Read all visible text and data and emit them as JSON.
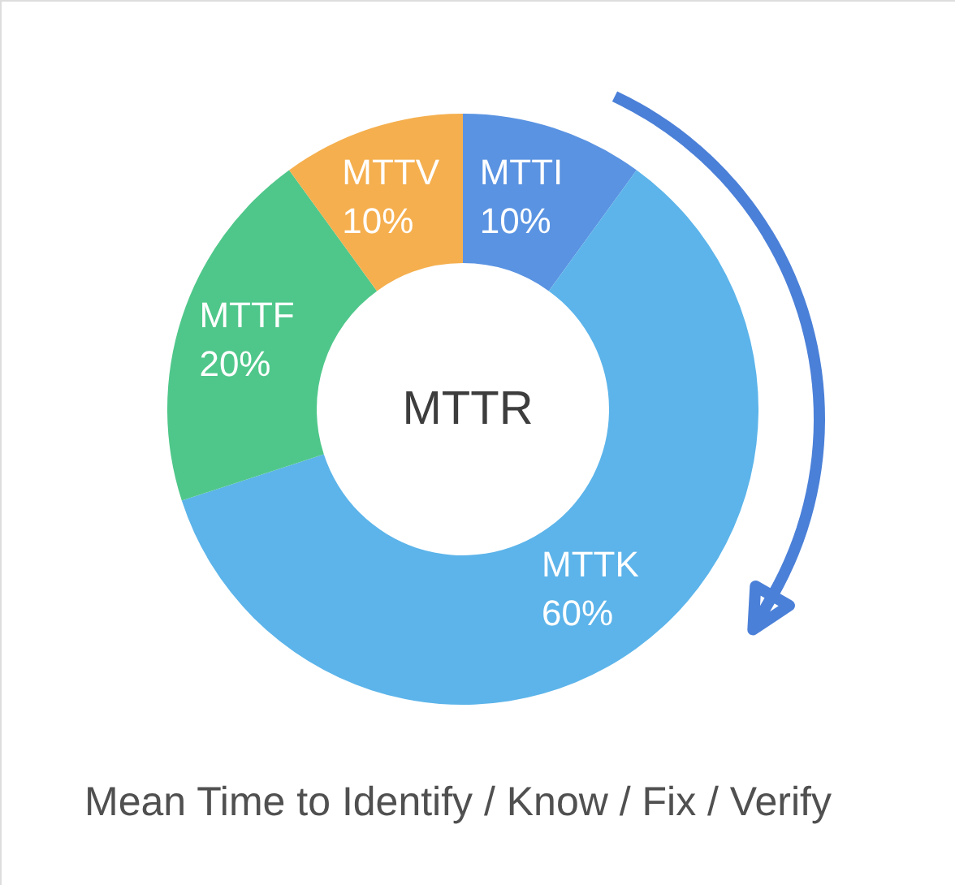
{
  "chart_data": {
    "type": "donut",
    "title": "MTTR",
    "categories": [
      "MTTI",
      "MTTK",
      "MTTF",
      "MTTV"
    ],
    "values": [
      10,
      60,
      20,
      10
    ],
    "colors": [
      "#5a93e2",
      "#5cb4ea",
      "#4fc78a",
      "#f5af4e"
    ],
    "value_labels": [
      "10%",
      "60%",
      "20%",
      "10%"
    ],
    "annotations": [
      "Mean Time to Identify / Know / Fix / Verify"
    ]
  }
}
